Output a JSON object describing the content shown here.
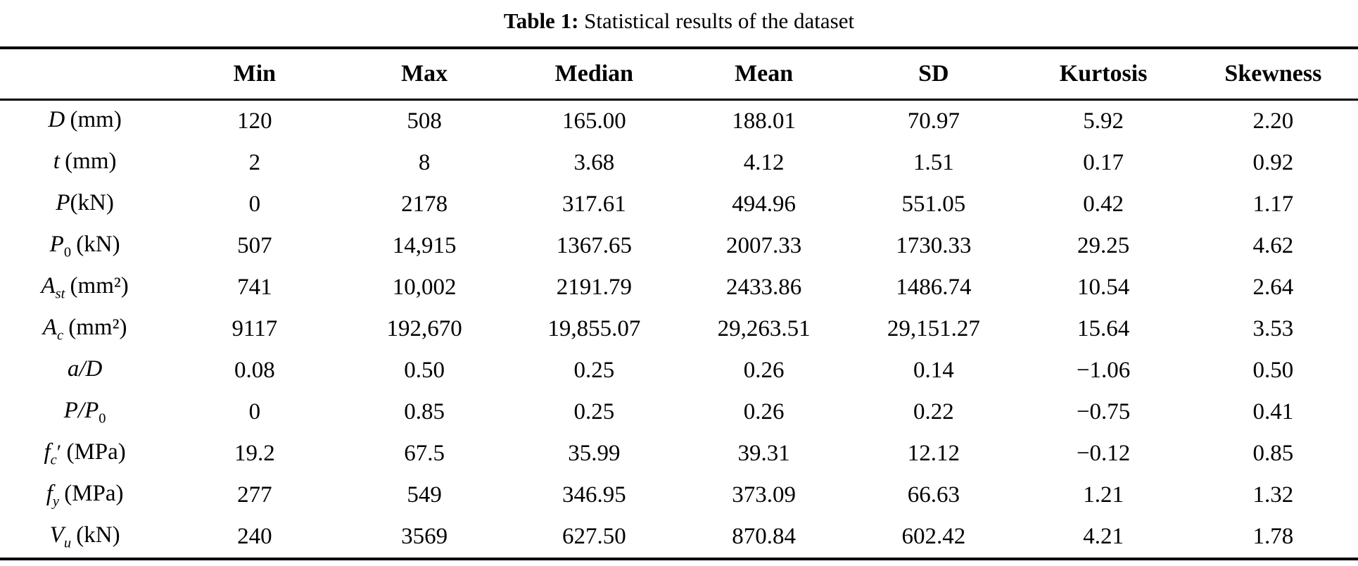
{
  "title": {
    "label": "Table 1:",
    "text": "Statistical results of the dataset"
  },
  "table": {
    "columns": [
      "",
      "Min",
      "Max",
      "Median",
      "Mean",
      "SD",
      "Kurtosis",
      "Skewness"
    ],
    "rows": [
      {
        "label": {
          "symbol": "D",
          "sub": "",
          "prime": "",
          "unit": "(mm)",
          "gap": true
        },
        "values": [
          "120",
          "508",
          "165.00",
          "188.01",
          "70.97",
          "5.92",
          "2.20"
        ]
      },
      {
        "label": {
          "symbol": "t",
          "sub": "",
          "prime": "",
          "unit": "(mm)",
          "gap": true
        },
        "values": [
          "2",
          "8",
          "3.68",
          "4.12",
          "1.51",
          "0.17",
          "0.92"
        ]
      },
      {
        "label": {
          "symbol": "P",
          "sub": "",
          "prime": "",
          "unit": "(kN)",
          "gap": false
        },
        "values": [
          "0",
          "2178",
          "317.61",
          "494.96",
          "551.05",
          "0.42",
          "1.17"
        ]
      },
      {
        "label": {
          "symbol": "P",
          "sub": "0",
          "prime": "",
          "unit": "(kN)",
          "gap": true
        },
        "values": [
          "507",
          "14,915",
          "1367.65",
          "2007.33",
          "1730.33",
          "29.25",
          "4.62"
        ]
      },
      {
        "label": {
          "symbol": "A",
          "sub": "st",
          "prime": "",
          "unit": "(mm²)",
          "gap": true
        },
        "values": [
          "741",
          "10,002",
          "2191.79",
          "2433.86",
          "1486.74",
          "10.54",
          "2.64"
        ]
      },
      {
        "label": {
          "symbol": "A",
          "sub": "c",
          "prime": "",
          "unit": "(mm²)",
          "gap": true
        },
        "values": [
          "9117",
          "192,670",
          "19,855.07",
          "29,263.51",
          "29,151.27",
          "15.64",
          "3.53"
        ]
      },
      {
        "label": {
          "symbol": "a/D",
          "sub": "",
          "prime": "",
          "unit": "",
          "gap": false
        },
        "values": [
          "0.08",
          "0.50",
          "0.25",
          "0.26",
          "0.14",
          "−1.06",
          "0.50"
        ]
      },
      {
        "label": {
          "symbol": "P/P",
          "sub": "0",
          "prime": "",
          "unit": "",
          "gap": false
        },
        "values": [
          "0",
          "0.85",
          "0.25",
          "0.26",
          "0.22",
          "−0.75",
          "0.41"
        ]
      },
      {
        "label": {
          "symbol": "f",
          "sub": "c",
          "prime": "′",
          "unit": "(MPa)",
          "gap": true
        },
        "values": [
          "19.2",
          "67.5",
          "35.99",
          "39.31",
          "12.12",
          "−0.12",
          "0.85"
        ]
      },
      {
        "label": {
          "symbol": "f",
          "sub": "y",
          "prime": "",
          "unit": "(MPa)",
          "gap": true
        },
        "values": [
          "277",
          "549",
          "346.95",
          "373.09",
          "66.63",
          "1.21",
          "1.32"
        ]
      },
      {
        "label": {
          "symbol": "V",
          "sub": "u",
          "prime": "",
          "unit": "(kN)",
          "gap": true
        },
        "values": [
          "240",
          "3569",
          "627.50",
          "870.84",
          "602.42",
          "4.21",
          "1.78"
        ]
      }
    ]
  }
}
